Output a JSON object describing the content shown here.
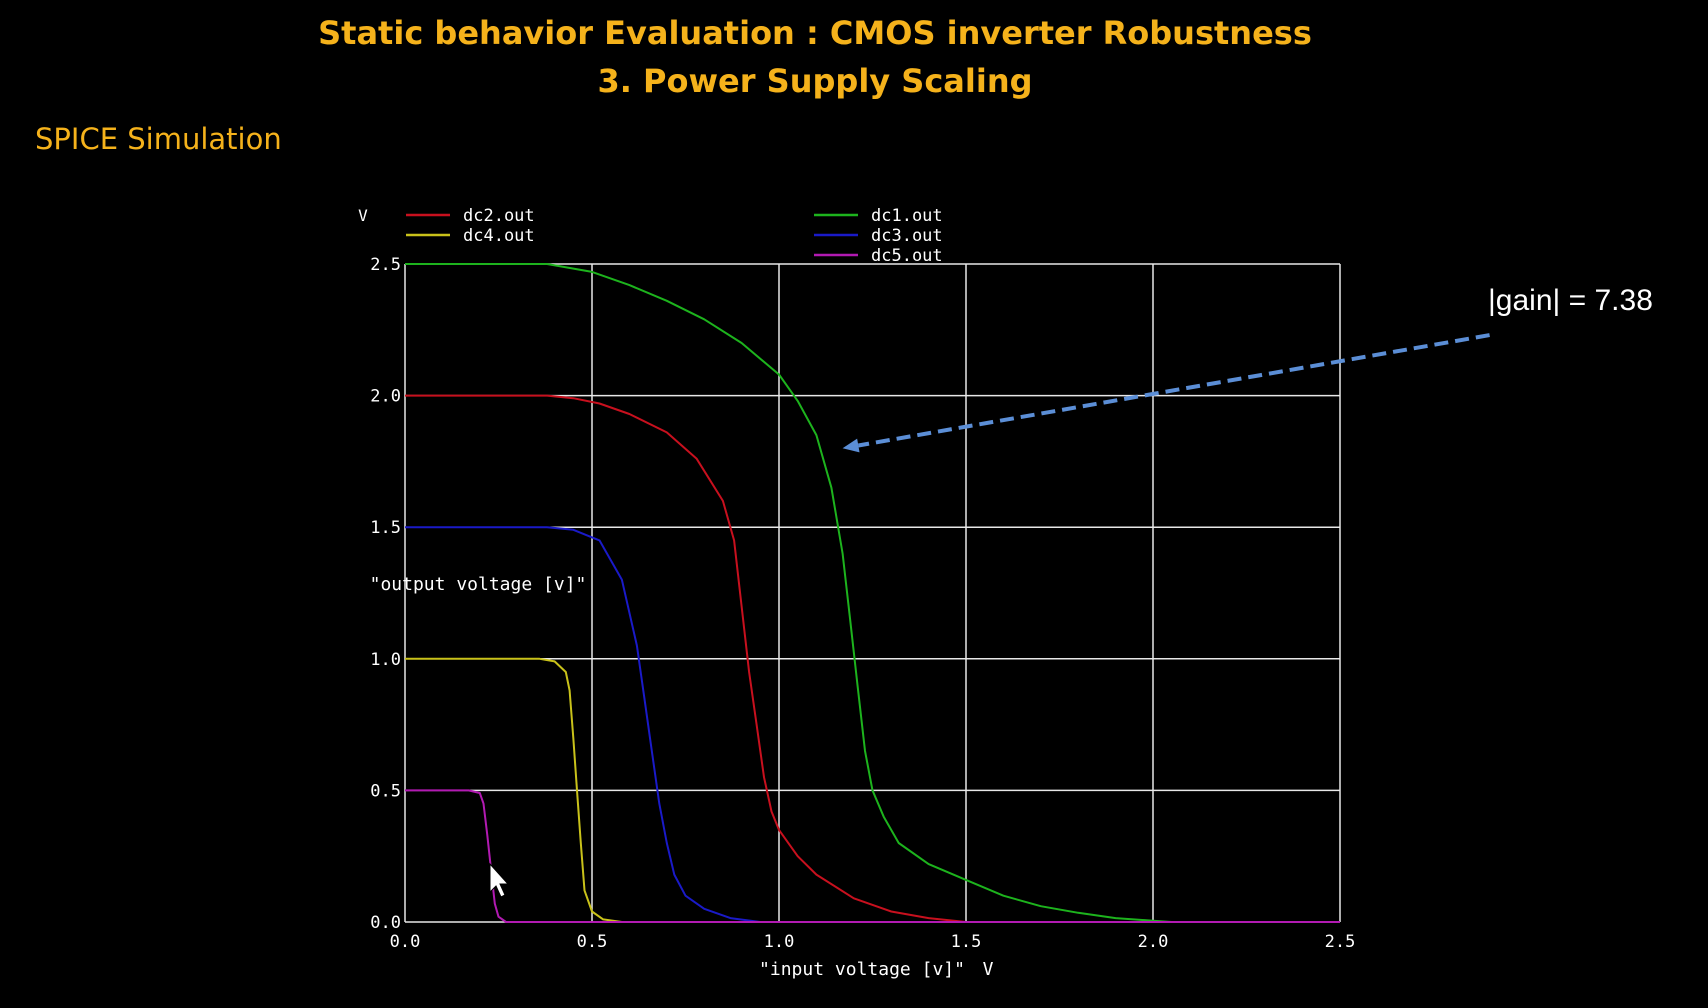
{
  "slide": {
    "title_line_1": "Static behavior Evaluation : CMOS inverter Robustness",
    "title_line_2": "3. Power Supply Scaling",
    "section_label": "SPICE Simulation",
    "title_color": "#F5B21B"
  },
  "annotation": {
    "text": "|gain| = 7.38",
    "arrow_color": "#5B8ED6",
    "arrow_from": [
      2.9,
      2.23
    ],
    "arrow_to": [
      1.17,
      1.8
    ]
  },
  "chart_data": {
    "type": "line",
    "xlabel": "\"input voltage [v]\"",
    "x_unit": "V",
    "ylabel": "\"output voltage [v]\"",
    "y_unit": "V",
    "xlim": [
      0.0,
      2.5
    ],
    "ylim": [
      0.0,
      2.5
    ],
    "xticks": [
      "0.0",
      "0.5",
      "1.0",
      "1.5",
      "2.0",
      "2.5"
    ],
    "yticks": [
      "0.0",
      "0.5",
      "1.0",
      "1.5",
      "2.0",
      "2.5"
    ],
    "grid": true,
    "legend_position": "top",
    "series": [
      {
        "name": "dc2.out",
        "color": "#C8101E",
        "x": [
          0.0,
          0.38,
          0.45,
          0.52,
          0.6,
          0.7,
          0.78,
          0.85,
          0.88,
          0.9,
          0.92,
          0.94,
          0.96,
          0.98,
          1.0,
          1.05,
          1.1,
          1.2,
          1.3,
          1.4,
          1.5,
          1.6,
          2.5
        ],
        "y": [
          2.0,
          2.0,
          1.99,
          1.97,
          1.93,
          1.86,
          1.76,
          1.6,
          1.45,
          1.2,
          0.95,
          0.75,
          0.55,
          0.42,
          0.35,
          0.25,
          0.18,
          0.09,
          0.04,
          0.015,
          0.0,
          0.0,
          0.0
        ]
      },
      {
        "name": "dc4.out",
        "color": "#C9C21A",
        "x": [
          0.0,
          0.36,
          0.4,
          0.43,
          0.44,
          0.45,
          0.46,
          0.47,
          0.48,
          0.5,
          0.53,
          0.58,
          2.5
        ],
        "y": [
          1.0,
          1.0,
          0.99,
          0.95,
          0.88,
          0.7,
          0.5,
          0.3,
          0.12,
          0.04,
          0.01,
          0.0,
          0.0
        ]
      },
      {
        "name": "dc1.out",
        "color": "#1DB31D",
        "x": [
          0.0,
          0.38,
          0.5,
          0.6,
          0.7,
          0.8,
          0.9,
          1.0,
          1.05,
          1.1,
          1.14,
          1.17,
          1.19,
          1.21,
          1.23,
          1.25,
          1.28,
          1.32,
          1.4,
          1.5,
          1.6,
          1.7,
          1.8,
          1.9,
          2.0,
          2.05,
          2.5
        ],
        "y": [
          2.5,
          2.5,
          2.47,
          2.42,
          2.36,
          2.29,
          2.2,
          2.08,
          1.98,
          1.85,
          1.65,
          1.4,
          1.15,
          0.9,
          0.65,
          0.5,
          0.4,
          0.3,
          0.22,
          0.16,
          0.1,
          0.06,
          0.035,
          0.015,
          0.005,
          0.0,
          0.0
        ]
      },
      {
        "name": "dc3.out",
        "color": "#1A1AC8",
        "x": [
          0.0,
          0.38,
          0.45,
          0.52,
          0.58,
          0.62,
          0.64,
          0.66,
          0.68,
          0.7,
          0.72,
          0.75,
          0.8,
          0.87,
          0.95,
          1.0,
          2.5
        ],
        "y": [
          1.5,
          1.5,
          1.49,
          1.45,
          1.3,
          1.05,
          0.85,
          0.65,
          0.45,
          0.3,
          0.18,
          0.1,
          0.05,
          0.015,
          0.0,
          0.0,
          0.0
        ]
      },
      {
        "name": "dc5.out",
        "color": "#B21AB2",
        "x": [
          0.0,
          0.17,
          0.2,
          0.21,
          0.22,
          0.23,
          0.24,
          0.25,
          0.27,
          2.5
        ],
        "y": [
          0.5,
          0.5,
          0.49,
          0.45,
          0.33,
          0.2,
          0.07,
          0.02,
          0.0,
          0.0
        ]
      }
    ]
  }
}
